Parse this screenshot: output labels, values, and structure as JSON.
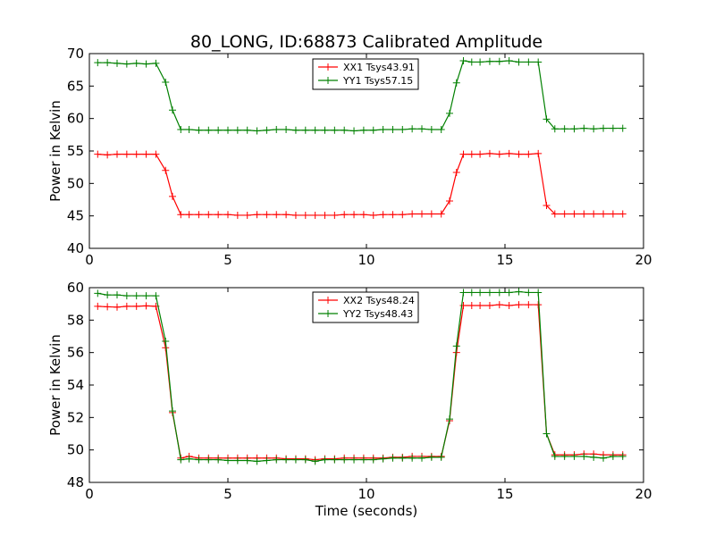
{
  "figure_title": "80_LONG, ID:68873 Calibrated Amplitude",
  "chart_data": [
    {
      "type": "line",
      "xlabel": "",
      "ylabel": "Power in Kelvin",
      "xlim": [
        0,
        20
      ],
      "ylim": [
        40,
        70
      ],
      "xticks": [
        "0",
        "5",
        "10",
        "15",
        "20"
      ],
      "yticks": [
        "40",
        "45",
        "50",
        "55",
        "60",
        "65",
        "70"
      ],
      "grid": false,
      "legend_position": "top-center",
      "x": [
        0.3,
        0.65,
        1.0,
        1.35,
        1.7,
        2.05,
        2.4,
        2.75,
        3.0,
        3.3,
        3.6,
        3.95,
        4.3,
        4.65,
        5.0,
        5.35,
        5.7,
        6.05,
        6.4,
        6.75,
        7.1,
        7.45,
        7.8,
        8.15,
        8.5,
        8.85,
        9.2,
        9.55,
        9.9,
        10.25,
        10.6,
        10.95,
        11.3,
        11.65,
        12.0,
        12.35,
        12.7,
        13.0,
        13.25,
        13.5,
        13.8,
        14.1,
        14.45,
        14.8,
        15.15,
        15.5,
        15.85,
        16.2,
        16.5,
        16.8,
        17.15,
        17.5,
        17.85,
        18.2,
        18.55,
        18.9,
        19.25
      ],
      "series": [
        {
          "name": "XX1 Tsys43.91",
          "color": "#ff0000",
          "values": [
            54.5,
            54.4,
            54.5,
            54.5,
            54.5,
            54.5,
            54.5,
            52.0,
            48.0,
            45.2,
            45.2,
            45.2,
            45.2,
            45.2,
            45.2,
            45.1,
            45.1,
            45.2,
            45.2,
            45.2,
            45.2,
            45.1,
            45.1,
            45.1,
            45.1,
            45.1,
            45.2,
            45.2,
            45.2,
            45.1,
            45.2,
            45.2,
            45.2,
            45.3,
            45.3,
            45.3,
            45.3,
            47.3,
            51.7,
            54.5,
            54.5,
            54.5,
            54.6,
            54.5,
            54.6,
            54.5,
            54.5,
            54.6,
            46.6,
            45.3,
            45.3,
            45.3,
            45.3,
            45.3,
            45.3,
            45.3,
            45.3
          ]
        },
        {
          "name": "YY1 Tsys57.15",
          "color": "#008000",
          "values": [
            68.6,
            68.6,
            68.5,
            68.4,
            68.5,
            68.4,
            68.5,
            65.6,
            61.3,
            58.3,
            58.3,
            58.2,
            58.2,
            58.2,
            58.2,
            58.2,
            58.2,
            58.1,
            58.2,
            58.3,
            58.3,
            58.2,
            58.2,
            58.2,
            58.2,
            58.2,
            58.2,
            58.1,
            58.2,
            58.2,
            58.3,
            58.3,
            58.3,
            58.4,
            58.4,
            58.3,
            58.3,
            60.8,
            65.5,
            68.9,
            68.7,
            68.7,
            68.8,
            68.8,
            68.9,
            68.7,
            68.7,
            68.7,
            59.9,
            58.4,
            58.4,
            58.4,
            58.5,
            58.4,
            58.5,
            58.5,
            58.5
          ]
        }
      ]
    },
    {
      "type": "line",
      "xlabel": "Time (seconds)",
      "ylabel": "Power in Kelvin",
      "xlim": [
        0,
        20
      ],
      "ylim": [
        48,
        60
      ],
      "xticks": [
        "0",
        "5",
        "10",
        "15",
        "20"
      ],
      "yticks": [
        "48",
        "50",
        "52",
        "54",
        "56",
        "58",
        "60"
      ],
      "grid": false,
      "legend_position": "top-center",
      "x": [
        0.3,
        0.65,
        1.0,
        1.35,
        1.7,
        2.05,
        2.4,
        2.75,
        3.0,
        3.3,
        3.6,
        3.95,
        4.3,
        4.65,
        5.0,
        5.35,
        5.7,
        6.05,
        6.4,
        6.75,
        7.1,
        7.45,
        7.8,
        8.15,
        8.5,
        8.85,
        9.2,
        9.55,
        9.9,
        10.25,
        10.6,
        10.95,
        11.3,
        11.65,
        12.0,
        12.35,
        12.7,
        13.0,
        13.25,
        13.5,
        13.8,
        14.1,
        14.45,
        14.8,
        15.15,
        15.5,
        15.85,
        16.2,
        16.5,
        16.8,
        17.15,
        17.5,
        17.85,
        18.2,
        18.55,
        18.9,
        19.25
      ],
      "series": [
        {
          "name": "XX2 Tsys48.24",
          "color": "#ff0000",
          "values": [
            58.85,
            58.82,
            58.8,
            58.85,
            58.85,
            58.88,
            58.85,
            56.3,
            52.3,
            49.5,
            49.6,
            49.5,
            49.5,
            49.5,
            49.5,
            49.5,
            49.5,
            49.5,
            49.5,
            49.5,
            49.45,
            49.45,
            49.45,
            49.4,
            49.45,
            49.45,
            49.5,
            49.5,
            49.5,
            49.5,
            49.5,
            49.55,
            49.55,
            49.6,
            49.6,
            49.6,
            49.6,
            51.8,
            56.0,
            58.9,
            58.9,
            58.9,
            58.9,
            58.95,
            58.9,
            58.95,
            58.95,
            58.95,
            51.0,
            49.7,
            49.7,
            49.7,
            49.75,
            49.75,
            49.7,
            49.7,
            49.7
          ]
        },
        {
          "name": "YY2 Tsys48.43",
          "color": "#008000",
          "values": [
            59.65,
            59.55,
            59.55,
            59.5,
            59.5,
            59.5,
            59.5,
            56.7,
            52.4,
            49.4,
            49.45,
            49.4,
            49.4,
            49.4,
            49.35,
            49.35,
            49.35,
            49.3,
            49.35,
            49.4,
            49.4,
            49.4,
            49.4,
            49.3,
            49.4,
            49.4,
            49.4,
            49.4,
            49.4,
            49.4,
            49.45,
            49.5,
            49.5,
            49.5,
            49.5,
            49.55,
            49.55,
            51.9,
            56.4,
            59.7,
            59.7,
            59.7,
            59.7,
            59.7,
            59.7,
            59.75,
            59.7,
            59.7,
            51.0,
            49.6,
            49.6,
            49.6,
            49.6,
            49.55,
            49.5,
            49.6,
            49.6
          ]
        }
      ]
    }
  ]
}
